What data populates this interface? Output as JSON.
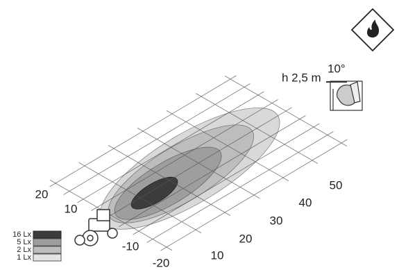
{
  "diagram": {
    "mounting": {
      "height_label": "h 2,5 m",
      "angle_label": "10°"
    },
    "lateral_labels": [
      "20",
      "10",
      "-10",
      "-20"
    ],
    "forward_labels": [
      "10",
      "20",
      "30",
      "40",
      "50"
    ],
    "legend": [
      "16 Lx",
      "5 Lx",
      "2 Lx",
      "1 Lx"
    ]
  }
}
